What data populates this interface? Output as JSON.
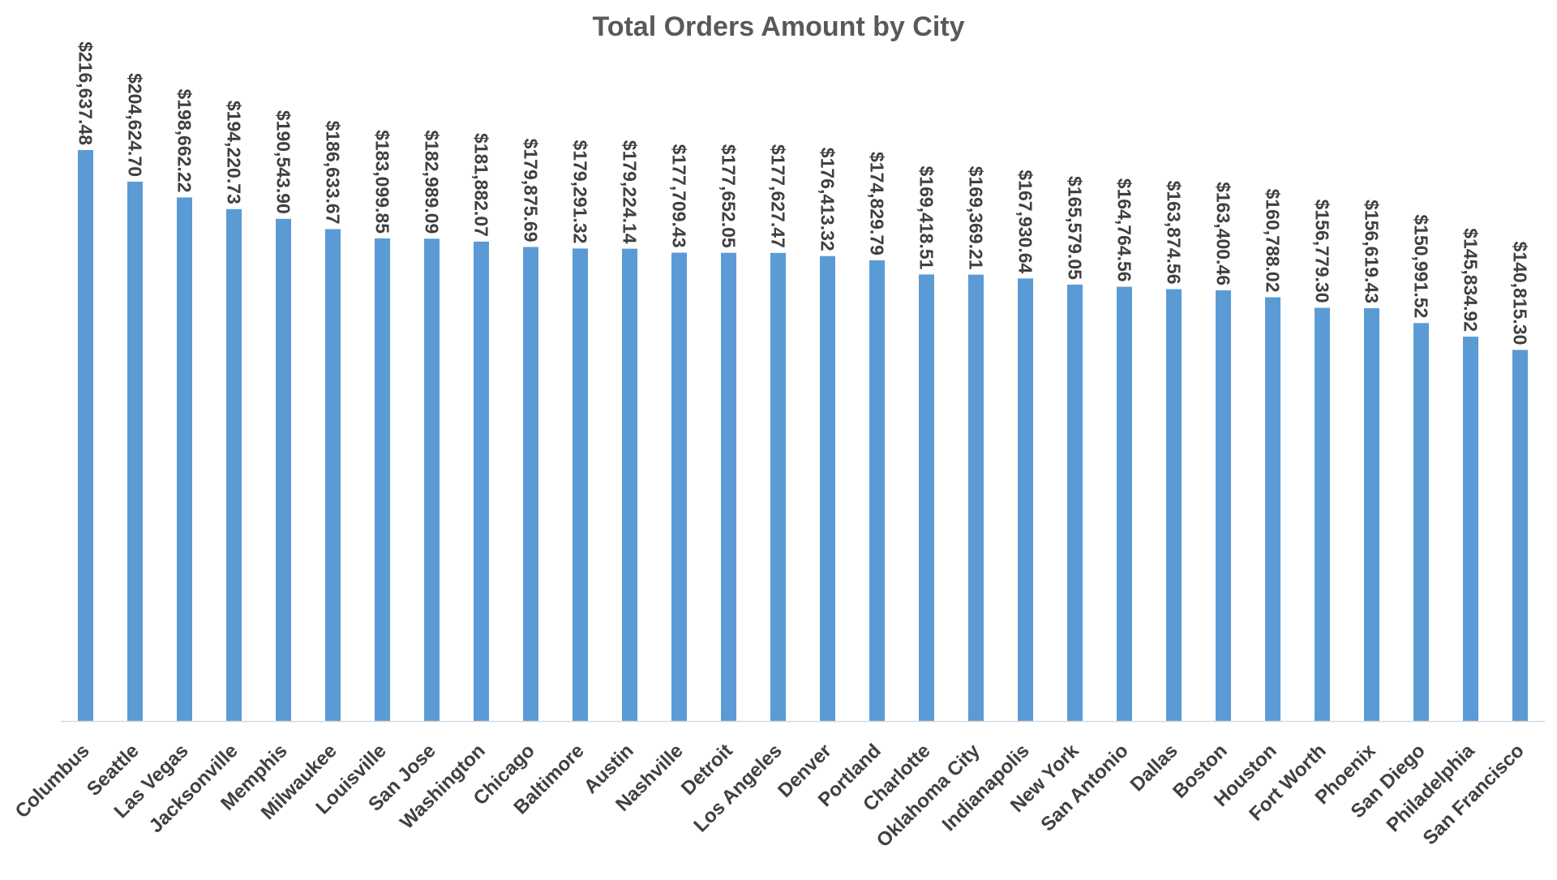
{
  "chart_data": {
    "type": "bar",
    "title": "Total Orders Amount by City",
    "xlabel": "",
    "ylabel": "",
    "ylim": [
      0,
      230000
    ],
    "grid": false,
    "legend": "none",
    "bar_color": "#5b9bd5",
    "text_color": "#404040",
    "axis_color": "#d9d9d9",
    "categories": [
      "Columbus",
      "Seattle",
      "Las Vegas",
      "Jacksonville",
      "Memphis",
      "Milwaukee",
      "Louisville",
      "San Jose",
      "Washington",
      "Chicago",
      "Baltimore",
      "Austin",
      "Nashville",
      "Detroit",
      "Los Angeles",
      "Denver",
      "Portland",
      "Charlotte",
      "Oklahoma City",
      "Indianapolis",
      "New York",
      "San Antonio",
      "Dallas",
      "Boston",
      "Houston",
      "Fort Worth",
      "Phoenix",
      "San Diego",
      "Philadelphia",
      "San Francisco"
    ],
    "values": [
      216637.48,
      204624.7,
      198662.22,
      194220.73,
      190543.9,
      186633.67,
      183099.85,
      182989.09,
      181882.07,
      179875.69,
      179291.32,
      179224.14,
      177709.43,
      177652.05,
      177627.47,
      176413.32,
      174829.79,
      169418.51,
      169369.21,
      167930.64,
      165579.05,
      164764.56,
      163874.56,
      163400.46,
      160788.02,
      156779.3,
      156619.43,
      150991.52,
      145834.92,
      140815.3
    ],
    "data_labels": [
      "$216,637.48",
      "$204,624.70",
      "$198,662.22",
      "$194,220.73",
      "$190,543.90",
      "$186,633.67",
      "$183,099.85",
      "$182,989.09",
      "$181,882.07",
      "$179,875.69",
      "$179,291.32",
      "$179,224.14",
      "$177,709.43",
      "$177,652.05",
      "$177,627.47",
      "$176,413.32",
      "$174,829.79",
      "$169,418.51",
      "$169,369.21",
      "$167,930.64",
      "$165,579.05",
      "$164,764.56",
      "$163,874.56",
      "$163,400.46",
      "$160,788.02",
      "$156,779.30",
      "$156,619.43",
      "$150,991.52",
      "$145,834.92",
      "$140,815.30"
    ]
  }
}
